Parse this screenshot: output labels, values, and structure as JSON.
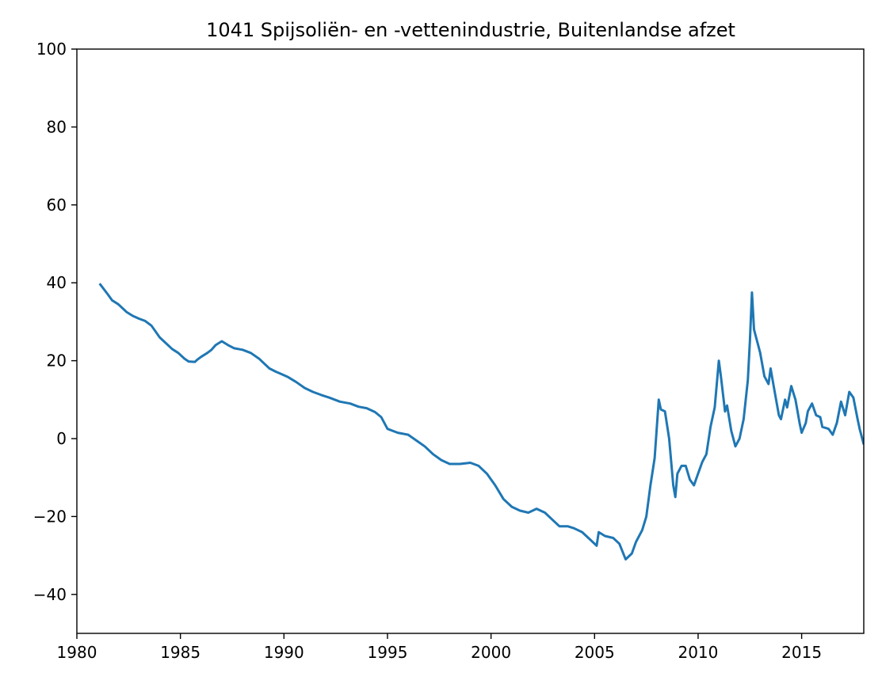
{
  "chart_data": {
    "type": "line",
    "title": "1041 Spijsoliën- en -vettenindustrie, Buitenlandse afzet",
    "xlabel": "",
    "ylabel": "",
    "xlim": [
      1980,
      2018
    ],
    "ylim": [
      -50,
      100
    ],
    "x_ticks": [
      1980,
      1985,
      1990,
      1995,
      2000,
      2005,
      2010,
      2015
    ],
    "y_ticks": [
      -40,
      -20,
      0,
      20,
      40,
      60,
      80,
      100
    ],
    "grid": false,
    "series": [
      {
        "color": "#1f77b4",
        "x": [
          1981.1,
          1981.5,
          1981.7,
          1982.0,
          1982.3,
          1982.4,
          1982.7,
          1983.0,
          1983.3,
          1983.6,
          1983.8,
          1984.0,
          1984.3,
          1984.6,
          1984.9,
          1985.2,
          1985.4,
          1985.7,
          1985.8,
          1986.0,
          1986.3,
          1986.5,
          1986.7,
          1987.0,
          1987.3,
          1987.6,
          1988.0,
          1988.4,
          1988.8,
          1989.0,
          1989.3,
          1989.6,
          1989.9,
          1990.2,
          1990.6,
          1991.0,
          1991.4,
          1991.8,
          1992.2,
          1992.7,
          1993.2,
          1993.6,
          1994.0,
          1994.4,
          1994.7,
          1995.0,
          1995.5,
          1996.0,
          1996.4,
          1996.8,
          1997.2,
          1997.6,
          1998.0,
          1998.5,
          1999.0,
          1999.4,
          1999.8,
          2000.2,
          2000.6,
          2001.0,
          2001.4,
          2001.8,
          2002.2,
          2002.6,
          2003.0,
          2003.3,
          2003.7,
          2004.0,
          2004.4,
          2004.8,
          2005.1,
          2005.2,
          2005.5,
          2005.9,
          2006.2,
          2006.5,
          2006.8,
          2007.0,
          2007.3,
          2007.5,
          2007.7,
          2007.9,
          2008.1,
          2008.2,
          2008.4,
          2008.6,
          2008.8,
          2008.9,
          2009.0,
          2009.2,
          2009.4,
          2009.6,
          2009.8,
          2010.0,
          2010.2,
          2010.4,
          2010.6,
          2010.8,
          2011.0,
          2011.1,
          2011.3,
          2011.4,
          2011.6,
          2011.8,
          2012.0,
          2012.2,
          2012.4,
          2012.5,
          2012.6,
          2012.7,
          2012.9,
          2013.0,
          2013.2,
          2013.4,
          2013.5,
          2013.7,
          2013.9,
          2014.0,
          2014.2,
          2014.3,
          2014.5,
          2014.7,
          2014.9,
          2015.0,
          2015.2,
          2015.3,
          2015.5,
          2015.7,
          2015.9,
          2016.0,
          2016.3,
          2016.5,
          2016.7,
          2016.9,
          2017.1,
          2017.3,
          2017.5,
          2017.7,
          2017.8,
          2018.0
        ],
        "y": [
          39.8,
          37.0,
          35.5,
          34.5,
          33.0,
          32.5,
          31.5,
          30.8,
          30.2,
          29.0,
          27.5,
          26.0,
          24.5,
          23.0,
          22.0,
          20.5,
          19.8,
          19.7,
          20.2,
          21.0,
          22.0,
          22.8,
          24.0,
          25.0,
          24.0,
          23.2,
          22.8,
          22.0,
          20.5,
          19.5,
          18.0,
          17.2,
          16.5,
          15.8,
          14.5,
          13.0,
          12.0,
          11.2,
          10.5,
          9.5,
          9.0,
          8.2,
          7.8,
          6.8,
          5.5,
          2.5,
          1.5,
          1.0,
          -0.5,
          -2.0,
          -4.0,
          -5.5,
          -6.5,
          -6.5,
          -6.2,
          -7.0,
          -9.0,
          -12.0,
          -15.5,
          -17.5,
          -18.5,
          -19.0,
          -18.0,
          -19.0,
          -21.0,
          -22.5,
          -22.5,
          -23.0,
          -24.0,
          -26.0,
          -27.5,
          -24.0,
          -25.0,
          -25.5,
          -27.0,
          -31.0,
          -29.5,
          -26.5,
          -23.5,
          -20.0,
          -12.0,
          -5.0,
          10.0,
          7.5,
          7.0,
          0.0,
          -12.0,
          -15.0,
          -9.0,
          -7.0,
          -7.0,
          -10.5,
          -12.0,
          -9.0,
          -6.0,
          -4.0,
          3.0,
          8.0,
          20.0,
          16.0,
          7.0,
          8.5,
          2.0,
          -2.0,
          0.0,
          5.0,
          15.0,
          25.0,
          37.5,
          28.0,
          24.0,
          22.0,
          16.0,
          14.0,
          18.0,
          12.0,
          6.0,
          5.0,
          10.0,
          8.0,
          13.5,
          10.0,
          4.0,
          1.5,
          4.0,
          7.0,
          9.0,
          6.0,
          5.5,
          3.0,
          2.5,
          1.0,
          4.0,
          9.5,
          6.0,
          12.0,
          10.5,
          5.0,
          2.5,
          -1.5
        ]
      }
    ]
  }
}
